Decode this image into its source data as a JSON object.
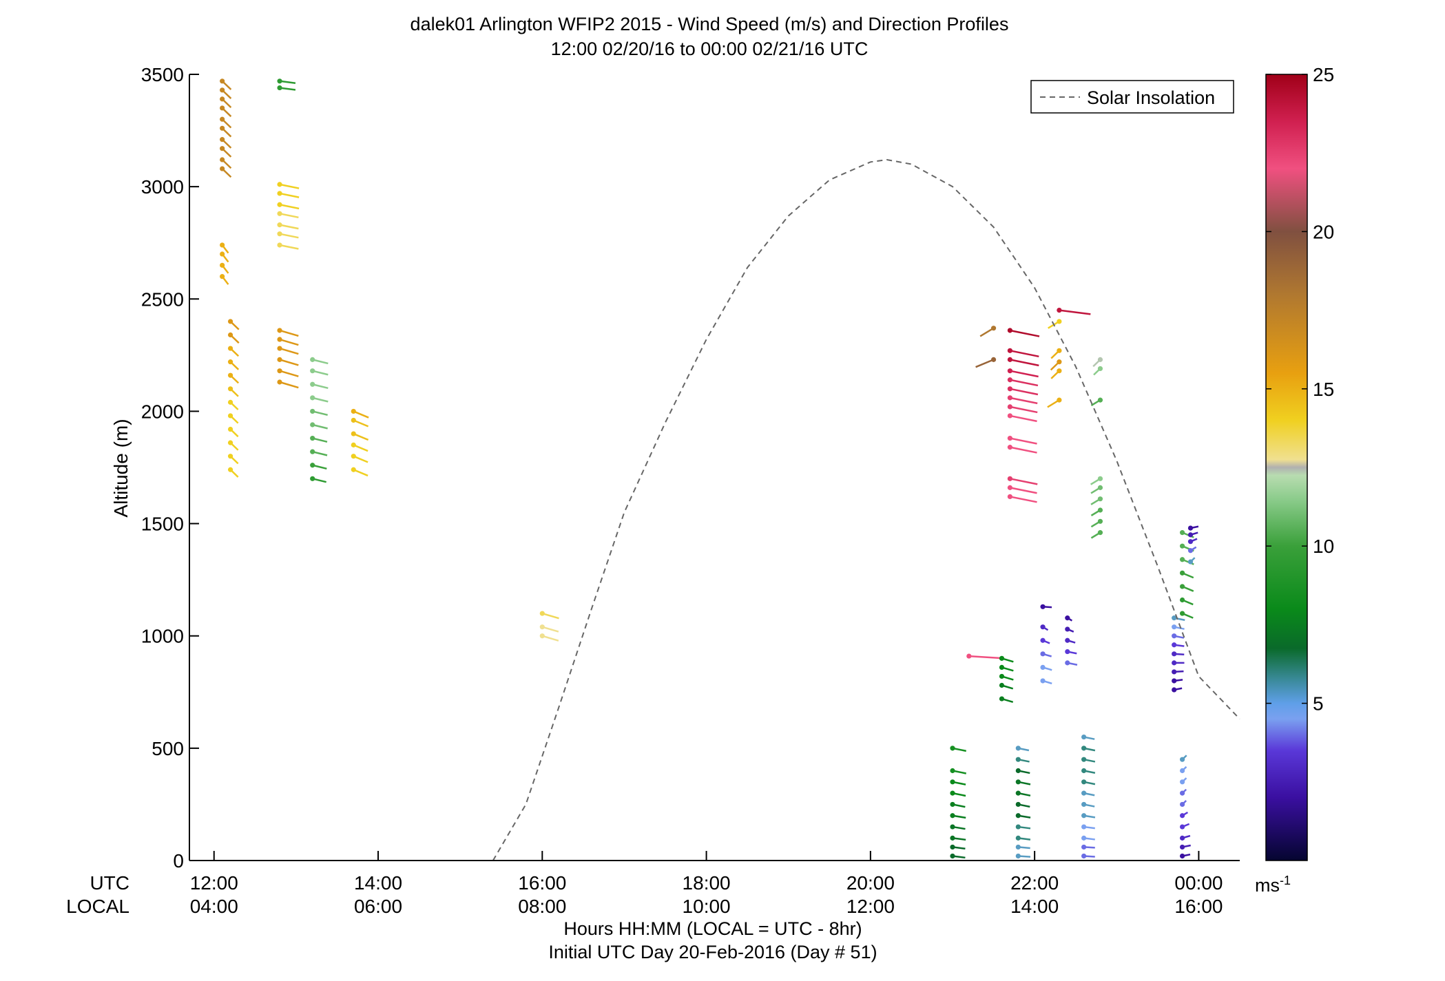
{
  "chart_data": {
    "type": "scatter",
    "title_line1": "dalek01 Arlington WFIP2 2015 - Wind Speed (m/s) and Direction Profiles",
    "title_line2": "12:00 02/20/16 to 00:00 02/21/16  UTC",
    "ylabel": "Altitude (m)",
    "xlabel_line1": "Hours HH:MM  (LOCAL = UTC - 8hr)",
    "xlabel_line2": "Initial UTC Day 20-Feb-2016 (Day # 51)",
    "utc_label": "UTC",
    "local_label": "LOCAL",
    "xlim_hours_utc": [
      11.7,
      24.5
    ],
    "ylim": [
      0,
      3500
    ],
    "yticks": [
      0,
      500,
      1000,
      1500,
      2000,
      2500,
      3000,
      3500
    ],
    "ytick_labels": [
      "0",
      "500",
      "1000",
      "1500",
      "2000",
      "2500",
      "3000",
      "3500"
    ],
    "xticks_hours_utc": [
      12,
      14,
      16,
      18,
      20,
      22,
      24
    ],
    "xtick_labels_utc": [
      "12:00",
      "14:00",
      "16:00",
      "18:00",
      "20:00",
      "22:00",
      "00:00"
    ],
    "xtick_labels_local": [
      "04:00",
      "06:00",
      "08:00",
      "10:00",
      "12:00",
      "14:00",
      "16:00"
    ],
    "legend": {
      "entry": "Solar Insolation",
      "placement": "top-right"
    },
    "colorbar": {
      "range": [
        0,
        25
      ],
      "ticks": [
        5,
        10,
        15,
        20,
        25
      ],
      "tick_labels": [
        "5",
        "10",
        "15",
        "20",
        "25"
      ],
      "unit_label": "ms",
      "unit_exponent": "-1"
    },
    "solar_insolation_curve": {
      "x_hours_utc": [
        15.4,
        15.8,
        16.2,
        16.6,
        17.0,
        17.5,
        18.0,
        18.5,
        19.0,
        19.5,
        20.0,
        20.2,
        20.5,
        21.0,
        21.5,
        22.0,
        22.5,
        23.0,
        23.5,
        24.0,
        24.5
      ],
      "y_m": [
        0,
        250,
        680,
        1120,
        1550,
        1950,
        2320,
        2640,
        2870,
        3030,
        3110,
        3120,
        3100,
        3000,
        2820,
        2550,
        2200,
        1780,
        1310,
        820,
        630
      ]
    },
    "profiles": [
      {
        "t": 12.1,
        "z": [
          3080,
          3120,
          3170,
          3210,
          3260,
          3300,
          3350,
          3390,
          3430,
          3470
        ],
        "spd": [
          17,
          17,
          17,
          17,
          17,
          17,
          17,
          17,
          17,
          17
        ],
        "dir": [
          200,
          200,
          200,
          200,
          200,
          200,
          200,
          200,
          200,
          200
        ]
      },
      {
        "t": 12.1,
        "z": [
          2600,
          2650,
          2700,
          2740
        ],
        "spd": [
          15,
          15,
          15,
          15
        ],
        "dir": [
          195,
          195,
          195,
          195
        ]
      },
      {
        "t": 12.2,
        "z": [
          1740,
          1800,
          1860,
          1920,
          1980,
          2040,
          2100,
          2160,
          2220,
          2280,
          2340,
          2400
        ],
        "spd": [
          14,
          14,
          14,
          14,
          14,
          14,
          14.5,
          15,
          15,
          15,
          16,
          16
        ],
        "dir": [
          200,
          200,
          200,
          200,
          200,
          200,
          200,
          200,
          200,
          200,
          200,
          200
        ]
      },
      {
        "t": 12.8,
        "z": [
          2130,
          2180,
          2230,
          2280,
          2320,
          2360
        ],
        "spd": [
          16,
          16,
          16,
          16,
          16,
          16
        ],
        "dir": [
          230,
          230,
          230,
          230,
          230,
          230
        ]
      },
      {
        "t": 12.8,
        "z": [
          2740,
          2790,
          2830,
          2880,
          2920,
          2970,
          3010
        ],
        "spd": [
          13.5,
          13.5,
          13.5,
          13.5,
          14,
          14,
          14
        ],
        "dir": [
          240,
          240,
          240,
          240,
          240,
          240,
          240
        ]
      },
      {
        "t": 12.8,
        "z": [
          3440,
          3470
        ],
        "spd": [
          9,
          9
        ],
        "dir": [
          250,
          250
        ]
      },
      {
        "t": 13.2,
        "z": [
          1700,
          1760,
          1820,
          1880,
          1940,
          2000,
          2060,
          2120,
          2180,
          2230
        ],
        "spd": [
          9,
          9.5,
          10,
          10,
          10.5,
          10.5,
          11,
          11,
          11,
          11
        ],
        "dir": [
          235,
          235,
          235,
          235,
          235,
          235,
          235,
          235,
          235,
          235
        ]
      },
      {
        "t": 13.7,
        "z": [
          1740,
          1800,
          1850,
          1900,
          1960,
          2000
        ],
        "spd": [
          14,
          14,
          14,
          14.5,
          14.5,
          15
        ],
        "dir": [
          220,
          220,
          220,
          220,
          220,
          220
        ]
      },
      {
        "t": 16.0,
        "z": [
          1000,
          1040,
          1100
        ],
        "spd": [
          13,
          13,
          13.5
        ],
        "dir": [
          230,
          230,
          230
        ]
      },
      {
        "t": 21.2,
        "z": [
          910
        ],
        "spd": [
          22
        ],
        "dir": [
          260
        ]
      },
      {
        "t": 21.7,
        "z": [
          1620,
          1660,
          1700,
          1840,
          1880,
          1980,
          2020,
          2060,
          2100,
          2140,
          2180,
          2230,
          2270,
          2360
        ],
        "spd": [
          22,
          22,
          22.5,
          22,
          22,
          22,
          22.5,
          22.5,
          23,
          23,
          23.5,
          24,
          24,
          24.5
        ],
        "dir": [
          240,
          240,
          240,
          240,
          240,
          240,
          240,
          240,
          240,
          240,
          240,
          240,
          240,
          240
        ]
      },
      {
        "t": 21.5,
        "z": [
          2230,
          2370
        ],
        "spd": [
          19,
          18
        ],
        "dir": [
          140,
          150
        ]
      },
      {
        "t": 22.3,
        "z": [
          2050,
          2180,
          2220,
          2270,
          2400,
          2450
        ],
        "spd": [
          15,
          15,
          16,
          15,
          14,
          24
        ],
        "dir": [
          150,
          160,
          160,
          160,
          150,
          250
        ]
      },
      {
        "t": 22.8,
        "z": [
          1460,
          1510,
          1560,
          1610,
          1660,
          1700,
          2050,
          2190,
          2230
        ],
        "spd": [
          10,
          10,
          10,
          10.5,
          10.5,
          11,
          10,
          11,
          12.5
        ],
        "dir": [
          150,
          150,
          150,
          150,
          150,
          150,
          150,
          160,
          160
        ]
      },
      {
        "t": 21.6,
        "z": [
          720,
          780,
          820,
          860,
          900
        ],
        "spd": [
          7,
          7,
          7.5,
          7.5,
          7.5
        ],
        "dir": [
          230,
          230,
          230,
          230,
          230
        ]
      },
      {
        "t": 22.1,
        "z": [
          800,
          860,
          920,
          980,
          1040,
          1130
        ],
        "spd": [
          4.5,
          4.5,
          4,
          3.5,
          3,
          2
        ],
        "dir": [
          230,
          230,
          230,
          220,
          210,
          260
        ]
      },
      {
        "t": 22.4,
        "z": [
          880,
          930,
          980,
          1030,
          1080
        ],
        "spd": [
          4,
          3.5,
          3,
          2.5,
          2
        ],
        "dir": [
          240,
          240,
          230,
          220,
          210
        ]
      },
      {
        "t": 23.7,
        "z": [
          760,
          800,
          840,
          880,
          920,
          960,
          1000,
          1040,
          1080
        ],
        "spd": [
          2,
          2,
          2.5,
          3,
          3,
          3.5,
          4,
          4.5,
          5
        ],
        "dir": [
          300,
          290,
          280,
          270,
          260,
          250,
          240,
          240,
          240
        ]
      },
      {
        "t": 23.8,
        "z": [
          1100,
          1160,
          1220,
          1280,
          1340,
          1400,
          1460
        ],
        "spd": [
          9,
          9,
          9.5,
          9.5,
          10,
          10,
          10
        ],
        "dir": [
          220,
          220,
          220,
          220,
          220,
          220,
          220
        ]
      },
      {
        "t": 23.9,
        "z": [
          1330,
          1380,
          1420,
          1450,
          1480
        ],
        "spd": [
          5,
          4,
          3,
          2.5,
          2
        ],
        "dir": [
          340,
          330,
          320,
          310,
          300
        ]
      },
      {
        "t": 23.8,
        "z": [
          20,
          60,
          100,
          150,
          200,
          250,
          300,
          350,
          400,
          450
        ],
        "spd": [
          2,
          2.5,
          3,
          3.5,
          3.5,
          4,
          4,
          4.5,
          4.5,
          5
        ],
        "dir": [
          300,
          300,
          310,
          320,
          330,
          340,
          340,
          340,
          340,
          340
        ]
      },
      {
        "t": 22.6,
        "z": [
          20,
          60,
          100,
          150,
          200,
          250,
          300,
          350,
          400,
          450,
          500,
          550
        ],
        "spd": [
          4,
          4,
          4.5,
          4.5,
          5,
          5,
          5,
          5.5,
          5.5,
          5.5,
          5.5,
          5
        ],
        "dir": [
          260,
          260,
          250,
          250,
          245,
          240,
          240,
          240,
          240,
          240,
          240,
          240
        ]
      },
      {
        "t": 21.8,
        "z": [
          20,
          60,
          100,
          150,
          200,
          250,
          300,
          350,
          400,
          450,
          500
        ],
        "spd": [
          5,
          5,
          5.5,
          5.5,
          6,
          6,
          6.5,
          6.5,
          6,
          5.5,
          5
        ],
        "dir": [
          260,
          255,
          250,
          250,
          245,
          240,
          240,
          240,
          240,
          240,
          240
        ]
      },
      {
        "t": 21.0,
        "z": [
          20,
          60,
          100,
          150,
          200,
          250,
          300,
          350,
          400,
          500
        ],
        "spd": [
          6,
          6,
          6.5,
          6.5,
          7,
          7,
          7.5,
          7.5,
          8,
          8
        ],
        "dir": [
          250,
          250,
          250,
          245,
          245,
          240,
          240,
          240,
          240,
          240
        ]
      }
    ]
  }
}
